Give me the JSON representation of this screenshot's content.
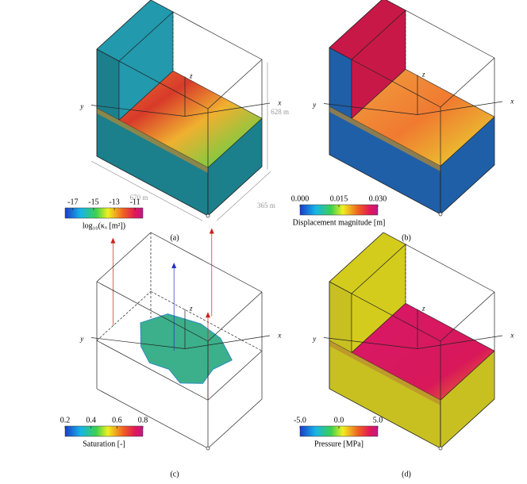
{
  "panels": [
    {
      "label": "(a)",
      "axes": {
        "x": "x",
        "y": "y",
        "z": "z"
      },
      "dimensions": {
        "length": "670 m",
        "width": "365 m",
        "height": "628 m"
      },
      "colorbar": {
        "title": "log₁₀(κₓ [m²])",
        "ticks": [
          "-17",
          "-15",
          "-13",
          "-11"
        ]
      }
    },
    {
      "label": "(b)",
      "axes": {
        "x": "x",
        "y": "y",
        "z": "z"
      },
      "colorbar": {
        "title": "Displacement magnitude [m]",
        "ticks": [
          "0.000",
          "0.015",
          "0.030"
        ]
      }
    },
    {
      "label": "(c)",
      "axes": {
        "x": "x",
        "y": "y",
        "z": "z"
      },
      "colorbar": {
        "title": "Saturation [-]",
        "ticks": [
          "0.2",
          "0.4",
          "0.6",
          "0.8"
        ]
      }
    },
    {
      "label": "(d)",
      "axes": {
        "x": "x",
        "y": "y",
        "z": "z"
      },
      "colorbar": {
        "title": "Pressure [MPa]",
        "ticks": [
          "-5.0",
          "0.0",
          "5.0"
        ]
      }
    }
  ]
}
